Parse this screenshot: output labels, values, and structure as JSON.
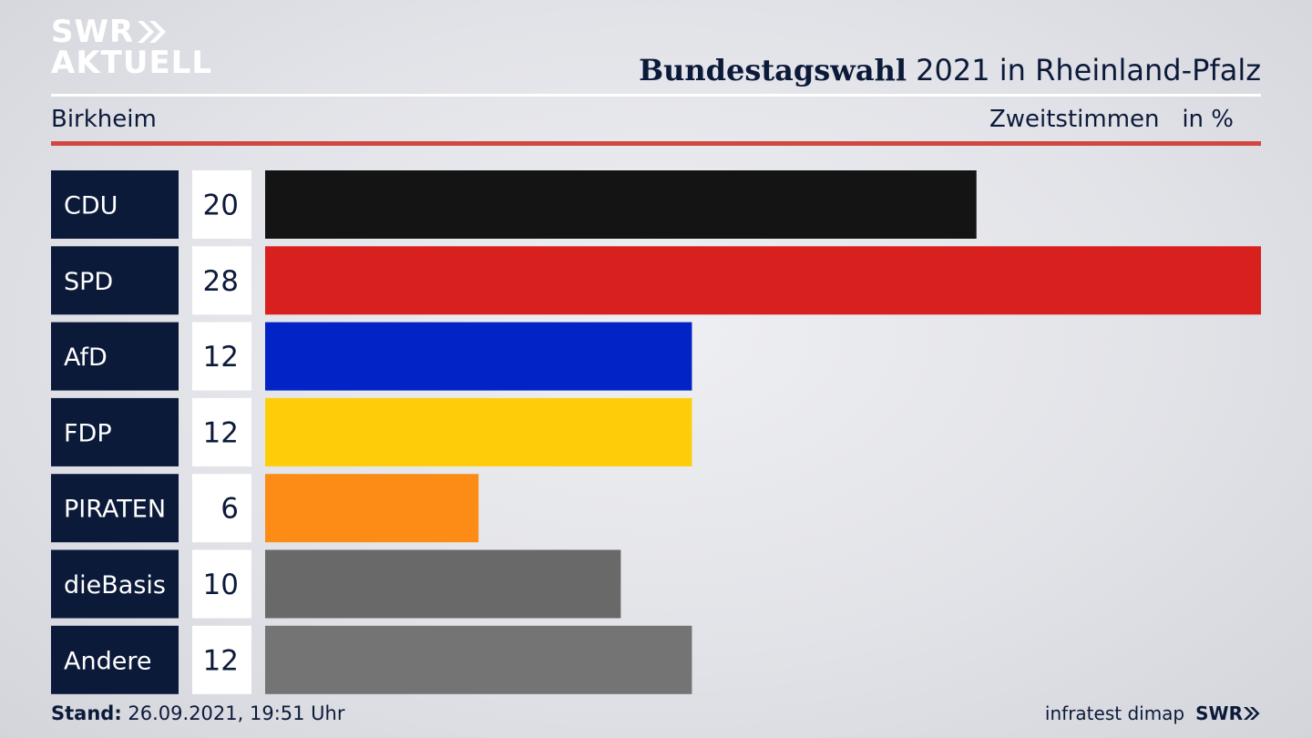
{
  "brand": {
    "logo_line1": "SWR",
    "logo_line2": "AKTUELL"
  },
  "header": {
    "title_bold": "Bundestagswahl",
    "title_rest": " 2021 in Rheinland-Pfalz",
    "subtitle": "Birkheim",
    "unit_label": "Zweitstimmen   in %"
  },
  "footer": {
    "stand_label": "Stand:",
    "stand_value": " 26.09.2021, 19:51 Uhr",
    "source": "infratest dimap",
    "source_logo": "SWR"
  },
  "colors": {
    "label_box": "#0c1a3a",
    "accent_rule": "#d1483f"
  },
  "chart_data": {
    "type": "bar",
    "orientation": "horizontal",
    "categories": [
      "CDU",
      "SPD",
      "AfD",
      "FDP",
      "PIRATEN",
      "dieBasis",
      "Andere"
    ],
    "values": [
      20,
      28,
      12,
      12,
      6,
      10,
      12
    ],
    "colors": [
      "#141414",
      "#d8201f",
      "#0224c6",
      "#fecd0a",
      "#fd8c17",
      "#696969",
      "#747474"
    ],
    "xlim": [
      0,
      28
    ],
    "grid": false,
    "legend": "none"
  }
}
